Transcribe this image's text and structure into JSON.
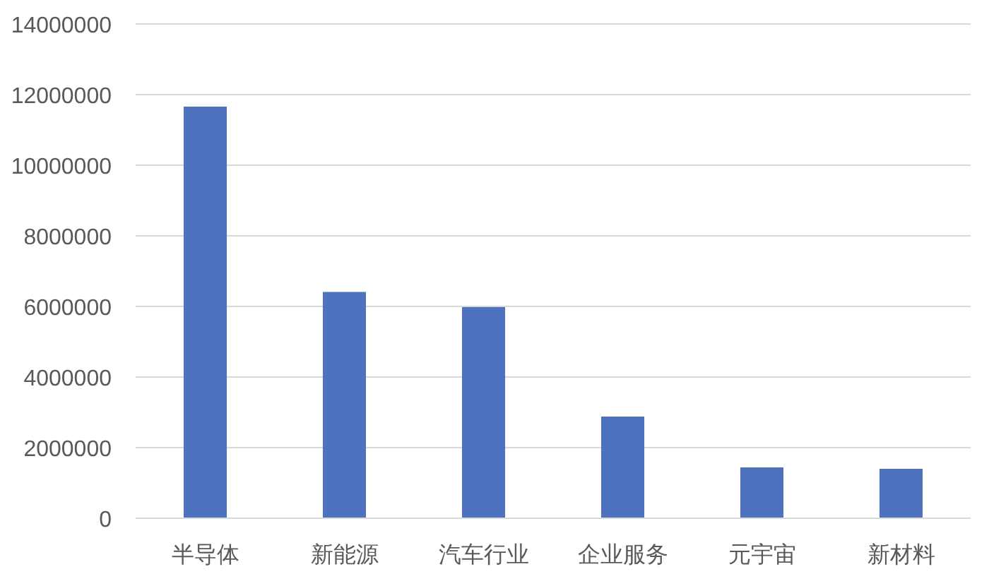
{
  "chart_data": {
    "type": "bar",
    "categories": [
      "半导体",
      "新能源",
      "汽车行业",
      "企业服务",
      "元宇宙",
      "新材料"
    ],
    "values": [
      11660000,
      6410000,
      5980000,
      2880000,
      1440000,
      1400000
    ],
    "color": "#4e72be",
    "ylim": [
      0,
      14000000
    ],
    "yticks": [
      0,
      2000000,
      4000000,
      6000000,
      8000000,
      10000000,
      12000000,
      14000000
    ],
    "grid": "y"
  }
}
